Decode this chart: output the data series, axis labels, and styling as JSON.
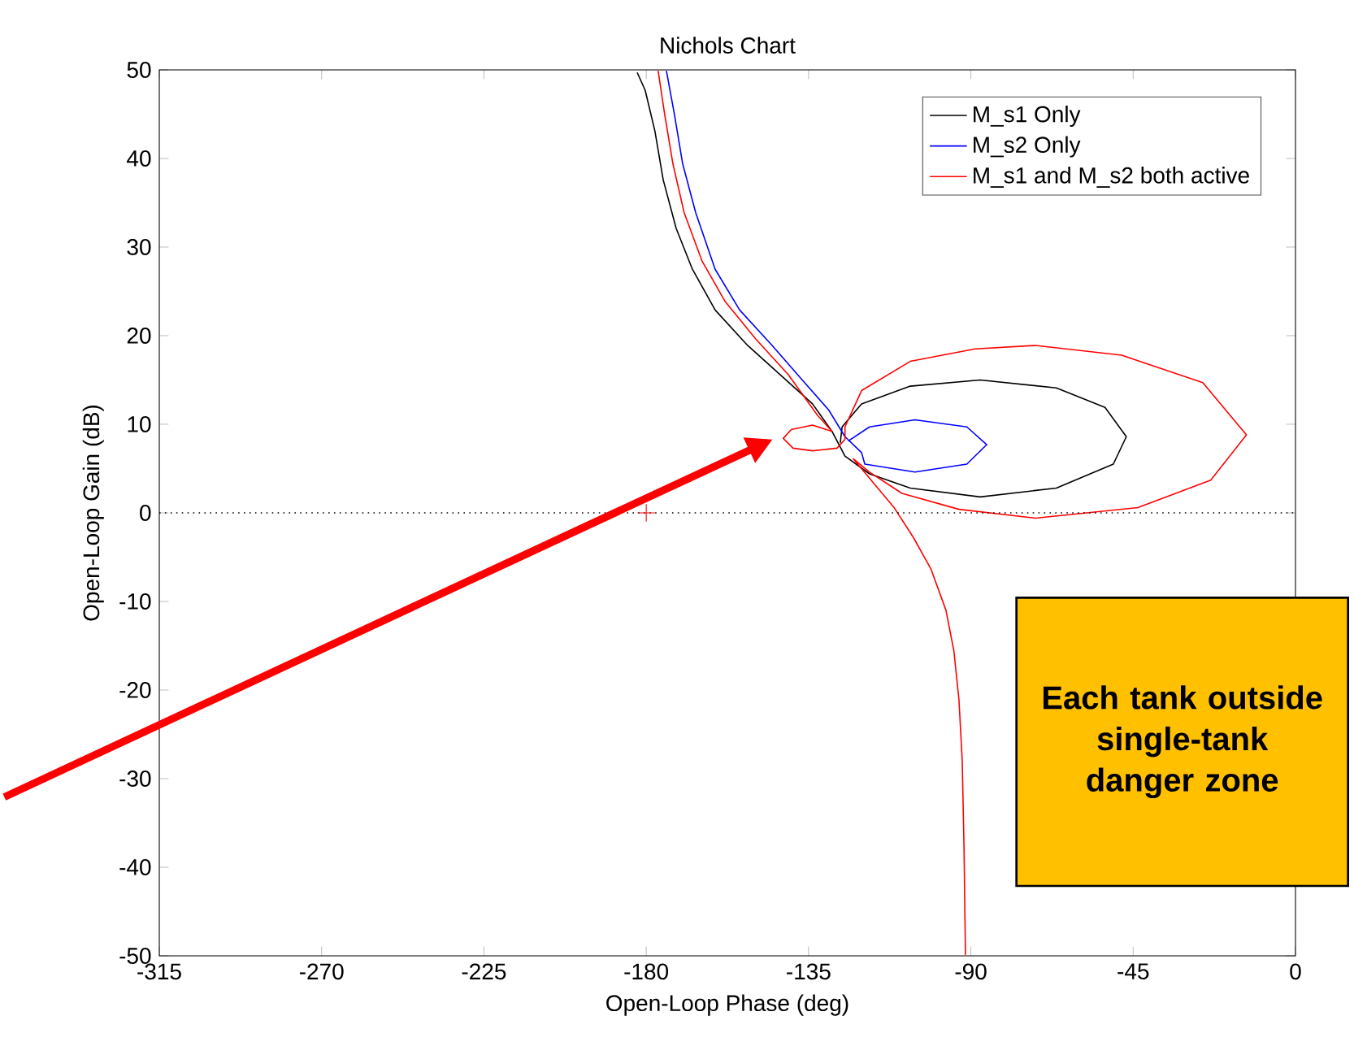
{
  "chart_data": {
    "type": "line",
    "title": "Nichols Chart",
    "xlabel": "Open-Loop Phase (deg)",
    "ylabel": "Open-Loop Gain (dB)",
    "xlim": [
      -315,
      0
    ],
    "xticks": [
      -315,
      -270,
      -225,
      -180,
      -135,
      -90,
      -45,
      0
    ],
    "ylim": [
      -50,
      50
    ],
    "yticks": [
      -50,
      -40,
      -30,
      -20,
      -10,
      0,
      10,
      20,
      30,
      40,
      50
    ],
    "grid": false,
    "legend": "top right",
    "line_style": "solid",
    "marker": "none",
    "ref_lines": [
      {
        "axis": "y",
        "value": 0,
        "color": "#000000",
        "line_style": "dotted"
      }
    ],
    "annotations": [
      "Each tank outside single-tank danger zone"
    ],
    "series": [
      {
        "name": "M_s1 Only",
        "color": "#000000",
        "x": [
          -182.5,
          -180.3,
          -177.6,
          -175.3,
          -171.7,
          -167.2,
          -160.9,
          -151.9,
          -142.9,
          -133.9,
          -128.5,
          -124.9,
          -118.1,
          -106.8,
          -87.4,
          -66.3,
          -50.5,
          -46.9,
          -52.8,
          -66.3,
          -87.4,
          -106.8,
          -120.3,
          -125.7,
          -126.2
        ],
        "values": [
          49.7,
          47.7,
          43.1,
          37.6,
          32.1,
          27.5,
          22.9,
          18.9,
          15.6,
          12.3,
          9.2,
          6.4,
          4.4,
          2.8,
          1.8,
          2.8,
          5.5,
          8.6,
          11.9,
          14.1,
          15.0,
          14.3,
          12.3,
          9.7,
          7.9
        ]
      },
      {
        "name": "M_s2 Only",
        "color": "#0000ff",
        "x": [
          -174.4,
          -172.2,
          -169.9,
          -166.3,
          -160.9,
          -154.1,
          -145.1,
          -136.1,
          -129.4,
          -124.9,
          -120.3,
          -119.4,
          -105.5,
          -91.1,
          -85.6,
          -91.1,
          -105.5,
          -118.1,
          -124.0
        ],
        "values": [
          49.9,
          45.0,
          39.4,
          33.9,
          27.5,
          22.9,
          18.9,
          14.7,
          11.6,
          8.6,
          6.8,
          5.5,
          4.6,
          5.5,
          7.7,
          9.7,
          10.5,
          9.7,
          8.1
        ]
      },
      {
        "name": "M_s1 and M_s2 both active",
        "color": "#ff0000",
        "x": [
          -176.7,
          -174.9,
          -172.6,
          -169.5,
          -164.5,
          -158.2,
          -149.6,
          -140.6,
          -132.5,
          -128.5,
          -133.9,
          -139.8,
          -142.0,
          -139.3,
          -133.9,
          -127.1,
          -124.9,
          -124.9,
          -120.3,
          -106.8,
          -88.8,
          -72.1,
          -48.2,
          -25.7,
          -13.6,
          -23.5,
          -43.7,
          -72.1,
          -93.3,
          -109.1,
          -118.1,
          -122.6,
          -115.8,
          -111.3,
          -105.9,
          -101.0,
          -96.9,
          -94.7,
          -93.3,
          -92.4,
          -91.9,
          -91.5
        ],
        "values": [
          49.9,
          45.0,
          39.4,
          33.9,
          28.4,
          23.9,
          19.6,
          15.6,
          11.0,
          9.2,
          9.9,
          9.4,
          8.4,
          7.3,
          7.0,
          7.3,
          8.3,
          9.7,
          13.8,
          17.1,
          18.5,
          18.9,
          17.8,
          14.7,
          8.8,
          3.7,
          0.6,
          -0.6,
          0.4,
          2.2,
          4.6,
          6.1,
          2.8,
          0.6,
          -2.8,
          -6.4,
          -11.0,
          -15.6,
          -21.1,
          -27.9,
          -37.6,
          -49.9
        ]
      },
      {
        "type": "scatter",
        "marker": "cross",
        "color": "#ff0000",
        "x": [
          -180
        ],
        "values": [
          0
        ]
      }
    ]
  }
}
